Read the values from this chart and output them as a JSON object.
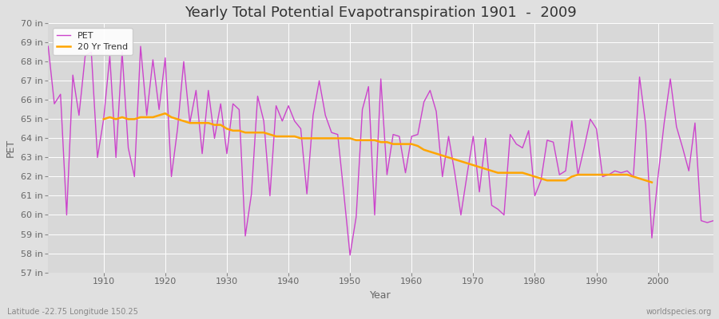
{
  "title": "Yearly Total Potential Evapotranspiration 1901  -  2009",
  "xlabel": "Year",
  "ylabel": "PET",
  "subtitle_left": "Latitude -22.75 Longitude 150.25",
  "subtitle_right": "worldspecies.org",
  "ylim": [
    57,
    70
  ],
  "xlim": [
    1901,
    2009
  ],
  "pet_color": "#CC44CC",
  "trend_color": "#FFA500",
  "fig_bg_color": "#E0E0E0",
  "plot_bg_color": "#D8D8D8",
  "grid_color": "#FFFFFF",
  "years": [
    1901,
    1902,
    1903,
    1904,
    1905,
    1906,
    1907,
    1908,
    1909,
    1910,
    1911,
    1912,
    1913,
    1914,
    1915,
    1916,
    1917,
    1918,
    1919,
    1920,
    1921,
    1922,
    1923,
    1924,
    1925,
    1926,
    1927,
    1928,
    1929,
    1930,
    1931,
    1932,
    1933,
    1934,
    1935,
    1936,
    1937,
    1938,
    1939,
    1940,
    1941,
    1942,
    1943,
    1944,
    1945,
    1946,
    1947,
    1948,
    1949,
    1950,
    1951,
    1952,
    1953,
    1954,
    1955,
    1956,
    1957,
    1958,
    1959,
    1960,
    1961,
    1962,
    1963,
    1964,
    1965,
    1966,
    1967,
    1968,
    1969,
    1970,
    1971,
    1972,
    1973,
    1974,
    1975,
    1976,
    1977,
    1978,
    1979,
    1980,
    1981,
    1982,
    1983,
    1984,
    1985,
    1986,
    1987,
    1988,
    1989,
    1990,
    1991,
    1992,
    1993,
    1994,
    1995,
    1996,
    1997,
    1998,
    1999,
    2000,
    2001,
    2002,
    2003,
    2004,
    2005,
    2006,
    2007,
    2008,
    2009
  ],
  "pet_values": [
    68.8,
    65.8,
    66.3,
    60.0,
    67.3,
    65.2,
    68.3,
    68.5,
    63.0,
    65.0,
    68.3,
    63.0,
    68.5,
    63.5,
    62.0,
    68.8,
    65.2,
    68.1,
    65.5,
    68.2,
    62.0,
    64.5,
    68.0,
    64.8,
    66.5,
    63.2,
    66.5,
    64.0,
    65.8,
    63.2,
    65.8,
    65.5,
    58.9,
    61.1,
    66.2,
    64.9,
    61.0,
    65.7,
    64.9,
    65.7,
    64.9,
    64.5,
    61.1,
    65.2,
    67.0,
    65.2,
    64.3,
    64.2,
    61.1,
    57.9,
    59.9,
    65.5,
    66.7,
    60.0,
    67.1,
    62.1,
    64.2,
    64.1,
    62.2,
    64.1,
    64.2,
    65.9,
    66.5,
    65.4,
    62.0,
    64.1,
    62.2,
    60.0,
    62.1,
    64.1,
    61.2,
    64.0,
    60.5,
    60.3,
    60.0,
    64.2,
    63.7,
    63.5,
    64.4,
    61.0,
    61.8,
    63.9,
    63.8,
    62.1,
    62.3,
    64.9,
    62.1,
    63.5,
    65.0,
    64.5,
    62.0,
    62.1,
    62.3,
    62.2,
    62.3,
    62.0,
    67.2,
    64.7,
    58.8,
    62.0,
    64.8,
    67.1,
    64.6,
    63.5,
    62.3,
    64.8,
    59.7,
    59.6,
    59.7
  ],
  "trend_values": [
    null,
    null,
    null,
    null,
    null,
    null,
    null,
    null,
    null,
    65.0,
    65.1,
    65.0,
    65.1,
    65.0,
    65.0,
    65.1,
    65.1,
    65.1,
    65.2,
    65.3,
    65.1,
    65.0,
    64.9,
    64.8,
    64.8,
    64.8,
    64.8,
    64.7,
    64.7,
    64.5,
    64.4,
    64.4,
    64.3,
    64.3,
    64.3,
    64.3,
    64.2,
    64.1,
    64.1,
    64.1,
    64.1,
    64.0,
    64.0,
    64.0,
    64.0,
    64.0,
    64.0,
    64.0,
    64.0,
    64.0,
    63.9,
    63.9,
    63.9,
    63.9,
    63.8,
    63.8,
    63.7,
    63.7,
    63.7,
    63.7,
    63.6,
    63.4,
    63.3,
    63.2,
    63.1,
    63.0,
    62.9,
    62.8,
    62.7,
    62.6,
    62.5,
    62.4,
    62.3,
    62.2,
    62.2,
    62.2,
    62.2,
    62.2,
    62.1,
    62.0,
    61.9,
    61.8,
    61.8,
    61.8,
    61.8,
    62.0,
    62.1,
    62.1,
    62.1,
    62.1,
    62.1,
    62.1,
    62.1,
    62.1,
    62.1,
    62.0,
    61.9,
    61.8,
    61.7,
    null,
    null,
    null,
    null,
    null,
    null,
    null,
    null,
    null,
    null
  ],
  "xticks": [
    1910,
    1920,
    1930,
    1940,
    1950,
    1960,
    1970,
    1980,
    1990,
    2000
  ],
  "yticks": [
    57,
    58,
    59,
    60,
    61,
    62,
    63,
    64,
    65,
    66,
    67,
    68,
    69,
    70
  ],
  "title_fontsize": 13,
  "axis_label_fontsize": 9,
  "tick_fontsize": 8,
  "legend_fontsize": 8,
  "subtitle_fontsize": 7
}
